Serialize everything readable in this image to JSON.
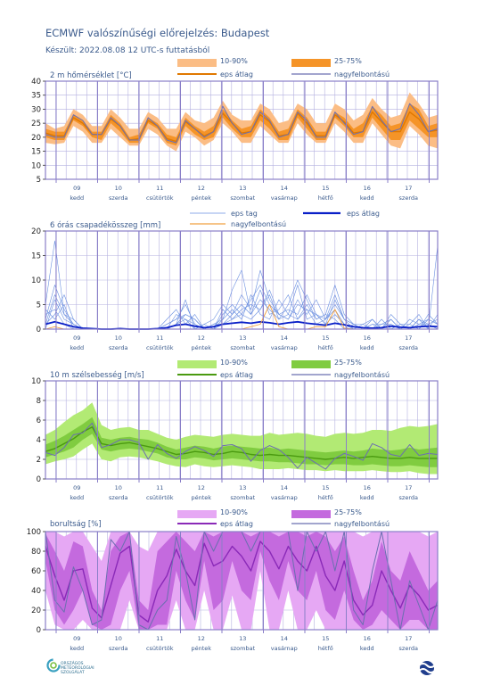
{
  "title": "ECMWF valószínűségi előrejelzés: Budapest",
  "subtitle": "Készült: 2022.08.08 12 UTC-s futtatásból",
  "days": [
    {
      "num": "09",
      "name": "kedd"
    },
    {
      "num": "10",
      "name": "szerda"
    },
    {
      "num": "11",
      "name": "csütörtök"
    },
    {
      "num": "12",
      "name": "péntek"
    },
    {
      "num": "13",
      "name": "szombat"
    },
    {
      "num": "14",
      "name": "vasárnap"
    },
    {
      "num": "15",
      "name": "hétfő"
    },
    {
      "num": "16",
      "name": "kedd"
    },
    {
      "num": "17",
      "name": "szerda"
    }
  ],
  "logos": {
    "omsz_text": "ORSZÁGOS\nMETEOROLÓGIAI\nSZOLGÁLAT"
  },
  "colors": {
    "frame": "#8a7fc8",
    "grid": "#b5b2e0",
    "axis": "#333333"
  },
  "chart_data": [
    {
      "type": "line",
      "id": "temp",
      "title": "2 m hőmérséklet [°C]",
      "ylim": [
        5,
        40
      ],
      "yticks": [
        5,
        10,
        15,
        20,
        25,
        30,
        35,
        40
      ],
      "legend": {
        "band_outer": "10-90%",
        "band_inner": "25-75%",
        "mean": "eps átlag",
        "hires": "nagyfelbontású"
      },
      "colors": {
        "outer": "#fbbd85",
        "inner": "#f59428",
        "mean": "#e07800",
        "hires": "#6b6fb0"
      },
      "p10": [
        18,
        17.5,
        18,
        24,
        22,
        18,
        18,
        23,
        20,
        17,
        17,
        23,
        21,
        17,
        15,
        22,
        20,
        17,
        19,
        25,
        22,
        18,
        18,
        24,
        21,
        18,
        18,
        25,
        21,
        18,
        18,
        25,
        22,
        18,
        18,
        25,
        21,
        17,
        16,
        24,
        21,
        17,
        16
      ],
      "p25": [
        20,
        19,
        19,
        26,
        24,
        20,
        19,
        25,
        22,
        18,
        18,
        25,
        23,
        18,
        17,
        24,
        21,
        19,
        20,
        27,
        23,
        20,
        20,
        26,
        23,
        19,
        19,
        27,
        23,
        19,
        19,
        27,
        24,
        20,
        20,
        27,
        23,
        19,
        19,
        26,
        23,
        20,
        20
      ],
      "p75": [
        23,
        22,
        22,
        28,
        26,
        22,
        22,
        28,
        25,
        20,
        21,
        27,
        25,
        21,
        20,
        27,
        24,
        22,
        24,
        30,
        26,
        23,
        24,
        30,
        27,
        22,
        23,
        30,
        27,
        22,
        22,
        29,
        27,
        23,
        25,
        31,
        28,
        24,
        25,
        32,
        30,
        24,
        25
      ],
      "p90": [
        25,
        23,
        24,
        30,
        28,
        24,
        24,
        30,
        27,
        23,
        23,
        29,
        27,
        23,
        23,
        29,
        26,
        25,
        27,
        33,
        28,
        26,
        26,
        32,
        30,
        25,
        26,
        32,
        30,
        25,
        25,
        32,
        30,
        26,
        28,
        34,
        30,
        27,
        28,
        36,
        32,
        27,
        28
      ],
      "mean": [
        21.5,
        20.5,
        20.5,
        27,
        25,
        21,
        21,
        26.5,
        24,
        19,
        19.5,
        26,
        24,
        19.5,
        18.5,
        25.5,
        23,
        20.5,
        22,
        28.5,
        25,
        21.5,
        22,
        28,
        25.5,
        20.5,
        21,
        28.5,
        25,
        20.5,
        20.5,
        28,
        25.5,
        21.5,
        22,
        29,
        25.5,
        22,
        22,
        29,
        26.5,
        22,
        22.5
      ],
      "hires": [
        21,
        20,
        20,
        28,
        26,
        21,
        21,
        27,
        24,
        19,
        19,
        27,
        24,
        19,
        18,
        26,
        23,
        20,
        22,
        31,
        25,
        21,
        22,
        29,
        26,
        20,
        21,
        29,
        26,
        20,
        20,
        29,
        25,
        21,
        22,
        31,
        26,
        22,
        23,
        32,
        28,
        22,
        23
      ]
    },
    {
      "type": "line",
      "id": "precip",
      "title": "6 órás csapadékösszeg [mm]",
      "ylim": [
        0,
        20
      ],
      "yticks": [
        0,
        5,
        10,
        15,
        20
      ],
      "legend": {
        "members": "eps tag",
        "mean": "eps átlag",
        "hires": "nagyfelbontású"
      },
      "colors": {
        "members": "#6a8fe0",
        "mean": "#0a20c8",
        "hires": "#f0a040"
      },
      "mean": [
        1,
        1.5,
        1,
        0.5,
        0.2,
        0.1,
        0,
        0,
        0.1,
        0,
        0,
        0,
        0.1,
        0.3,
        0.8,
        1,
        0.6,
        0.3,
        0.5,
        1,
        1.2,
        1.4,
        1.2,
        1.5,
        1.3,
        1,
        1.3,
        1.5,
        1.2,
        1,
        0.8,
        1.2,
        0.9,
        0.5,
        0.3,
        0.2,
        0.3,
        0.6,
        0.4,
        0.3,
        0.5,
        0.6,
        0.5
      ],
      "hires": [
        0,
        0.5,
        0,
        0,
        0,
        0,
        0,
        0,
        0,
        0,
        0,
        0,
        0,
        0,
        0,
        0,
        0,
        0,
        0,
        0,
        0,
        0,
        0.5,
        1,
        5,
        0.5,
        0,
        0,
        0,
        0.5,
        0.5,
        4,
        0.2,
        0,
        0,
        0,
        0,
        0,
        0,
        0,
        0,
        0,
        0
      ],
      "members": [
        [
          2,
          9,
          4,
          1,
          0,
          0,
          0,
          0,
          0,
          0,
          0,
          0,
          0,
          0,
          1,
          3,
          2,
          0,
          0,
          3,
          5,
          3,
          2,
          4,
          8,
          3,
          2,
          5,
          4,
          3,
          2,
          7,
          2,
          1,
          0,
          0,
          1,
          2,
          0,
          0,
          1,
          2,
          1
        ],
        [
          5,
          18,
          3,
          1,
          0,
          0,
          0,
          0,
          0,
          0,
          0,
          0,
          0,
          1,
          2,
          5,
          1,
          0,
          1,
          2,
          8,
          12,
          3,
          6,
          4,
          2,
          5,
          10,
          6,
          2,
          3,
          9,
          3,
          1,
          0,
          1,
          0,
          3,
          1,
          0,
          2,
          1,
          2
        ],
        [
          1,
          3,
          7,
          2,
          0,
          0,
          0,
          0,
          0,
          0,
          0,
          0,
          0,
          0,
          3,
          2,
          0,
          1,
          0,
          1,
          2,
          3,
          6,
          9,
          5,
          3,
          4,
          3,
          7,
          3,
          1,
          3,
          1,
          0,
          1,
          2,
          0,
          1,
          0,
          1,
          3,
          0,
          17
        ],
        [
          3,
          4,
          1,
          0,
          0,
          0,
          0,
          0,
          0,
          0,
          0,
          0,
          0,
          2,
          4,
          1,
          3,
          0,
          0,
          2,
          4,
          2,
          7,
          3,
          2,
          6,
          3,
          2,
          4,
          1,
          2,
          5,
          2,
          1,
          0,
          0,
          2,
          0,
          1,
          0,
          0,
          3,
          1
        ],
        [
          0,
          6,
          2,
          1,
          0,
          0,
          0,
          0,
          0,
          0,
          0,
          0,
          0,
          0,
          1,
          6,
          0,
          1,
          2,
          5,
          3,
          7,
          4,
          12,
          6,
          3,
          2,
          6,
          3,
          6,
          2,
          4,
          1,
          0,
          0,
          1,
          1,
          1,
          0,
          2,
          1,
          1,
          0
        ],
        [
          4,
          2,
          5,
          0,
          0,
          0,
          0,
          0,
          0,
          0,
          0,
          0,
          0,
          1,
          2,
          3,
          2,
          0,
          1,
          1,
          3,
          5,
          3,
          8,
          3,
          4,
          7,
          2,
          5,
          2,
          3,
          2,
          0,
          1,
          1,
          0,
          0,
          2,
          0,
          0,
          2,
          0,
          3
        ],
        [
          1,
          7,
          3,
          2,
          0,
          0,
          0,
          0,
          0,
          0,
          0,
          0,
          0,
          0,
          1,
          2,
          1,
          0,
          0,
          4,
          2,
          4,
          5,
          4,
          7,
          2,
          3,
          9,
          2,
          3,
          1,
          6,
          2,
          0,
          0,
          2,
          0,
          0,
          1,
          1,
          0,
          2,
          1
        ]
      ]
    },
    {
      "type": "line",
      "id": "wind",
      "title": "10 m szélsebesség [m/s]",
      "ylim": [
        0,
        10
      ],
      "yticks": [
        0,
        2,
        4,
        6,
        8,
        10
      ],
      "legend": {
        "band_outer": "10-90%",
        "band_inner": "25-75%",
        "mean": "eps átlag",
        "hires": "nagyfelbontású"
      },
      "colors": {
        "outer": "#b2ea74",
        "inner": "#80cc40",
        "mean": "#4a9a10",
        "hires": "#6b6fb0"
      },
      "p10": [
        1.5,
        1.8,
        2,
        2.3,
        3,
        3.6,
        2,
        1.8,
        2.2,
        2.3,
        2.2,
        2,
        1.8,
        1.5,
        1.3,
        1.2,
        1.5,
        1.3,
        1.2,
        1.3,
        1.4,
        1.3,
        1.2,
        1,
        1,
        1,
        1.1,
        1,
        0.9,
        0.9,
        0.8,
        0.9,
        0.8,
        0.8,
        0.8,
        0.9,
        0.8,
        0.7,
        0.7,
        0.8,
        0.6,
        0.5,
        0.5
      ],
      "p25": [
        2.2,
        2.5,
        2.8,
        3.2,
        4,
        4.6,
        3,
        2.8,
        3,
        3.1,
        3,
        2.8,
        2.6,
        2.2,
        2,
        2,
        2.2,
        2.1,
        1.9,
        2,
        2.1,
        2,
        1.9,
        1.8,
        1.8,
        1.7,
        1.7,
        1.6,
        1.5,
        1.5,
        1.4,
        1.5,
        1.5,
        1.4,
        1.4,
        1.5,
        1.4,
        1.3,
        1.3,
        1.4,
        1.3,
        1.2,
        1.2
      ],
      "p75": [
        3.5,
        3.9,
        4.4,
        5,
        5.6,
        6.3,
        4.2,
        4,
        4.2,
        4.3,
        4.1,
        4,
        3.7,
        3.3,
        3,
        3.2,
        3.4,
        3.3,
        3.1,
        3.3,
        3.4,
        3.3,
        3.2,
        3.1,
        3.2,
        3,
        3.1,
        3,
        2.9,
        2.8,
        2.7,
        2.8,
        2.9,
        2.8,
        2.9,
        3.1,
        3,
        2.9,
        3,
        3.2,
        3,
        3.1,
        3.2
      ],
      "p90": [
        4.5,
        5,
        5.8,
        6.5,
        7,
        7.8,
        5.5,
        5,
        5.2,
        5.3,
        5,
        5,
        4.6,
        4.2,
        4,
        4.3,
        4.5,
        4.4,
        4.3,
        4.5,
        4.6,
        4.5,
        4.4,
        4.4,
        4.7,
        4.5,
        4.6,
        4.7,
        4.6,
        4.4,
        4.3,
        4.6,
        4.7,
        4.6,
        4.7,
        5,
        5,
        4.9,
        5.2,
        5.4,
        5.3,
        5.4,
        5.6
      ],
      "mean": [
        2.8,
        3.1,
        3.6,
        4.1,
        4.8,
        5.3,
        3.6,
        3.4,
        3.6,
        3.7,
        3.5,
        3.3,
        3.1,
        2.8,
        2.5,
        2.6,
        2.8,
        2.7,
        2.5,
        2.6,
        2.8,
        2.7,
        2.5,
        2.4,
        2.5,
        2.4,
        2.4,
        2.3,
        2.2,
        2.1,
        2,
        2.1,
        2.2,
        2.1,
        2.2,
        2.3,
        2.2,
        2.1,
        2.1,
        2.2,
        2.1,
        2.1,
        2.1
      ],
      "hires": [
        2.7,
        2.4,
        3.2,
        4.5,
        4.7,
        5.7,
        3.2,
        3.5,
        4,
        4,
        3.7,
        2,
        3.5,
        2.6,
        2.1,
        2.8,
        3.3,
        2.9,
        2.3,
        3.4,
        3.5,
        3.1,
        1.8,
        2.9,
        3.4,
        3,
        2.2,
        1.1,
        2.2,
        1.6,
        1,
        2.1,
        2.6,
        2.3,
        1.9,
        3.6,
        3.2,
        2.5,
        2.3,
        3.5,
        2.4,
        2.6,
        2.5
      ]
    },
    {
      "type": "line",
      "id": "cloud",
      "title": "borultság [%]",
      "ylim": [
        0,
        100
      ],
      "yticks": [
        0,
        20,
        40,
        60,
        80,
        100
      ],
      "legend": {
        "band_outer": "10-90%",
        "band_inner": "25-75%",
        "mean": "eps átlag",
        "hires": "nagyfelbontású"
      },
      "colors": {
        "outer": "#e6a8f4",
        "inner": "#c46ade",
        "mean": "#8a2ab8",
        "hires": "#6b6fb0"
      },
      "p10": [
        40,
        5,
        0,
        0,
        10,
        0,
        0,
        0,
        0,
        30,
        0,
        0,
        0,
        0,
        30,
        0,
        0,
        40,
        0,
        0,
        35,
        0,
        0,
        60,
        0,
        0,
        40,
        0,
        0,
        20,
        0,
        0,
        0,
        0,
        0,
        0,
        0,
        0,
        0,
        0,
        0,
        0,
        0
      ],
      "p25": [
        70,
        20,
        5,
        20,
        40,
        5,
        0,
        5,
        40,
        60,
        0,
        0,
        5,
        5,
        60,
        30,
        10,
        70,
        20,
        30,
        70,
        40,
        30,
        80,
        50,
        30,
        70,
        40,
        30,
        60,
        20,
        10,
        40,
        10,
        0,
        5,
        20,
        10,
        0,
        10,
        10,
        0,
        0
      ],
      "p75": [
        98,
        80,
        60,
        90,
        85,
        40,
        20,
        80,
        95,
        100,
        30,
        20,
        80,
        90,
        100,
        90,
        80,
        100,
        95,
        100,
        100,
        100,
        95,
        100,
        100,
        95,
        100,
        100,
        95,
        100,
        95,
        80,
        95,
        60,
        30,
        50,
        90,
        60,
        50,
        80,
        60,
        40,
        50
      ],
      "p90": [
        100,
        100,
        95,
        100,
        100,
        85,
        70,
        100,
        100,
        100,
        85,
        80,
        100,
        100,
        100,
        100,
        100,
        100,
        100,
        100,
        100,
        100,
        100,
        100,
        100,
        100,
        100,
        100,
        100,
        100,
        100,
        100,
        100,
        100,
        95,
        100,
        100,
        100,
        100,
        100,
        100,
        95,
        100
      ],
      "mean": [
        85,
        55,
        30,
        60,
        62,
        22,
        12,
        45,
        78,
        85,
        15,
        8,
        40,
        55,
        82,
        60,
        45,
        88,
        65,
        70,
        85,
        75,
        60,
        90,
        80,
        62,
        85,
        70,
        60,
        85,
        55,
        40,
        70,
        30,
        15,
        25,
        60,
        40,
        22,
        45,
        35,
        20,
        25
      ],
      "hires": [
        100,
        30,
        18,
        64,
        40,
        5,
        10,
        92,
        80,
        100,
        5,
        0,
        20,
        30,
        95,
        60,
        10,
        100,
        80,
        100,
        100,
        100,
        80,
        100,
        100,
        100,
        100,
        40,
        100,
        80,
        100,
        60,
        100,
        20,
        5,
        60,
        100,
        50,
        0,
        50,
        25,
        0,
        30
      ]
    }
  ]
}
